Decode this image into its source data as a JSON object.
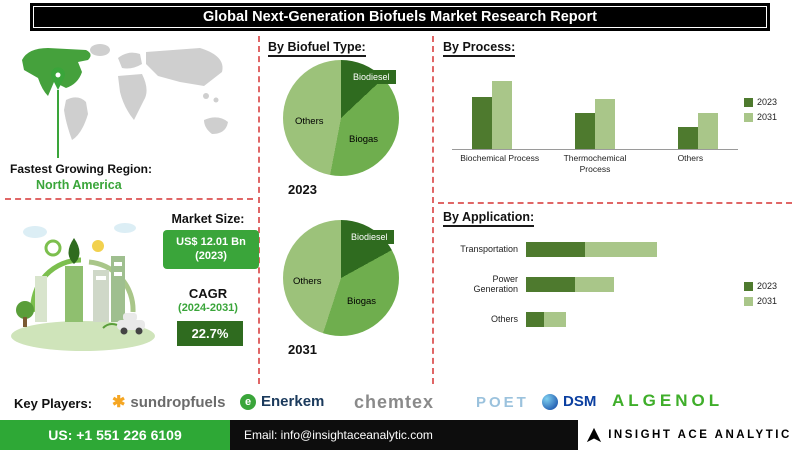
{
  "header": {
    "title": "Global Next-Generation Biofuels Market Research Report"
  },
  "region": {
    "label": "Fastest Growing Region:",
    "value": "North America"
  },
  "market_size": {
    "label": "Market Size:",
    "value": "US$ 12.01 Bn (2023)"
  },
  "cagr": {
    "label": "CAGR",
    "period": "(2024-2031)",
    "value": "22.7%"
  },
  "sections": {
    "biofuel": "By Biofuel Type:",
    "process": "By Process:",
    "application": "By Application:"
  },
  "key_players": {
    "label": "Key Players:",
    "players": [
      {
        "name": "sundropfuels"
      },
      {
        "name": "Enerkem"
      },
      {
        "name": "chemtex"
      },
      {
        "name": "POET"
      },
      {
        "name": "DSM"
      },
      {
        "name": "ALGENOL"
      }
    ]
  },
  "footer": {
    "phone": "US: +1 551 226 6109",
    "email": "Email: info@insightaceanalytic.com",
    "brand": "INSIGHT ACE ANALYTIC"
  },
  "colors": {
    "accent_green": "#3aa53a",
    "dark_green": "#4e7a2e",
    "light_green": "#a9c689",
    "divider_red": "#e06666"
  },
  "chart_data": [
    {
      "type": "pie",
      "title": "By Biofuel Type",
      "year": "2023",
      "slices": [
        {
          "label": "Biodiesel",
          "value": 13,
          "color": "#2f6b1f"
        },
        {
          "label": "Biogas",
          "value": 40,
          "color": "#6fae4e"
        },
        {
          "label": "Others",
          "value": 47,
          "color": "#9cc27a"
        }
      ]
    },
    {
      "type": "pie",
      "title": "By Biofuel Type",
      "year": "2031",
      "slices": [
        {
          "label": "Biodiesel",
          "value": 17,
          "color": "#2f6b1f"
        },
        {
          "label": "Biogas",
          "value": 38,
          "color": "#6fae4e"
        },
        {
          "label": "Others",
          "value": 45,
          "color": "#9cc27a"
        }
      ]
    },
    {
      "type": "bar",
      "title": "By Process",
      "categories": [
        "Biochemical Process",
        "Thermochemical Process",
        "Others"
      ],
      "series": [
        {
          "name": "2023",
          "color": "#4e7a2e",
          "values": [
            65,
            45,
            28
          ]
        },
        {
          "name": "2031",
          "color": "#a9c689",
          "values": [
            85,
            62,
            45
          ]
        }
      ],
      "ylim": [
        0,
        100
      ],
      "legend_position": "right"
    },
    {
      "type": "bar",
      "orientation": "horizontal",
      "stacked": true,
      "title": "By Application",
      "categories": [
        "Transportation",
        "Power Generation",
        "Others"
      ],
      "series": [
        {
          "name": "2023",
          "color": "#4e7a2e",
          "values": [
            45,
            38,
            14
          ]
        },
        {
          "name": "2031",
          "color": "#a9c689",
          "values": [
            55,
            30,
            17
          ]
        }
      ],
      "legend_position": "right"
    }
  ]
}
